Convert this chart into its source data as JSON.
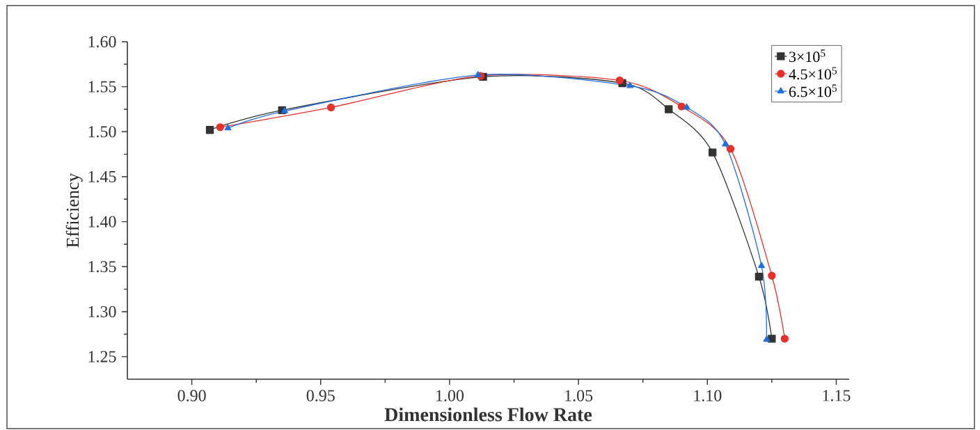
{
  "chart_data": {
    "type": "line",
    "xlabel": "Dimensionless Flow Rate",
    "ylabel": "Efficiency",
    "xlim": [
      0.875,
      1.155
    ],
    "ylim": [
      1.225,
      1.6
    ],
    "xticks": [
      {
        "value": 0.9,
        "label": "0.90"
      },
      0.95,
      {
        "value": 1.0,
        "label": "1.00"
      },
      1.05,
      {
        "value": 1.1,
        "label": "1.10"
      },
      1.15
    ],
    "yticks": [
      1.25,
      {
        "value": 1.3,
        "label": "1.30"
      },
      1.35,
      {
        "value": 1.4,
        "label": "1.40"
      },
      1.45,
      {
        "value": 1.5,
        "label": "1.50"
      },
      1.55,
      {
        "value": 1.6,
        "label": "1.60"
      }
    ],
    "legend": "top right",
    "line_style": "solid",
    "series": [
      {
        "name": "3×10$^{5}$",
        "color": "#333333",
        "marker": "square",
        "x": [
          0.907,
          0.935,
          1.013,
          1.067,
          1.085,
          1.102,
          1.12,
          1.125
        ],
        "values": [
          1.502,
          1.524,
          1.561,
          1.554,
          1.525,
          1.477,
          1.339,
          1.27
        ]
      },
      {
        "name": "4.5×10$^{5}$",
        "color": "#e8302a",
        "marker": "circle",
        "x": [
          0.911,
          0.954,
          1.012,
          1.066,
          1.09,
          1.109,
          1.125,
          1.13
        ],
        "values": [
          1.505,
          1.527,
          1.562,
          1.557,
          1.528,
          1.481,
          1.34,
          1.27
        ]
      },
      {
        "name": "6.5×10$^{5}$",
        "color": "#1f6fe0",
        "marker": "triangle",
        "x": [
          0.914,
          0.936,
          1.011,
          1.07,
          1.092,
          1.107,
          1.121,
          1.123
        ],
        "values": [
          1.504,
          1.523,
          1.563,
          1.551,
          1.527,
          1.486,
          1.351,
          1.269
        ]
      }
    ]
  }
}
